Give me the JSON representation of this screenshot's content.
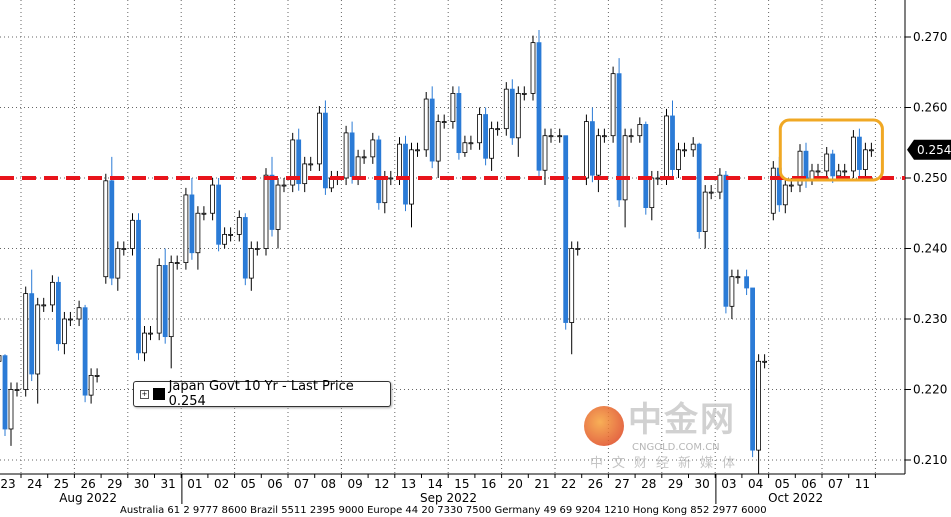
{
  "chart_data": {
    "type": "candlestick",
    "title": "",
    "xlabel": "",
    "ylabel": "",
    "ylim": [
      0.205,
      0.2755
    ],
    "y_ticks": [
      "0.210",
      "0.220",
      "0.230",
      "0.240",
      "0.250",
      "0.260",
      "0.270"
    ],
    "y_axis_side": "right",
    "grid": true,
    "x_tick_labels": [
      "23",
      "24",
      "25",
      "26",
      "29",
      "30",
      "31",
      "01",
      "02",
      "05",
      "06",
      "07",
      "08",
      "09",
      "12",
      "13",
      "14",
      "15",
      "16",
      "20",
      "21",
      "22",
      "26",
      "27",
      "28",
      "29",
      "30",
      "03",
      "04",
      "05",
      "06",
      "07",
      "11"
    ],
    "month_labels": [
      {
        "label": "Aug 2022",
        "from": 0,
        "to": 6
      },
      {
        "label": "Sep 2022",
        "from": 7,
        "to": 26
      },
      {
        "label": "Oct 2022",
        "from": 27,
        "to": 32
      }
    ],
    "series": [
      {
        "name": "Japan Govt 10 Yr - Last Price",
        "daily": [
          {
            "o": 0.224,
            "h": 0.225,
            "l": 0.212,
            "c": 0.22
          },
          {
            "o": 0.22,
            "h": 0.237,
            "l": 0.218,
            "c": 0.232
          },
          {
            "o": 0.232,
            "h": 0.236,
            "l": 0.225,
            "c": 0.23
          },
          {
            "o": 0.23,
            "h": 0.232,
            "l": 0.218,
            "c": 0.222
          },
          {
            "o": 0.236,
            "h": 0.253,
            "l": 0.234,
            "c": 0.24
          },
          {
            "o": 0.24,
            "h": 0.245,
            "l": 0.224,
            "c": 0.228
          },
          {
            "o": 0.228,
            "h": 0.24,
            "l": 0.223,
            "c": 0.238
          },
          {
            "o": 0.238,
            "h": 0.25,
            "l": 0.237,
            "c": 0.245
          },
          {
            "o": 0.245,
            "h": 0.25,
            "l": 0.24,
            "c": 0.242
          },
          {
            "o": 0.242,
            "h": 0.245,
            "l": 0.234,
            "c": 0.24
          },
          {
            "o": 0.24,
            "h": 0.253,
            "l": 0.24,
            "c": 0.249
          },
          {
            "o": 0.249,
            "h": 0.257,
            "l": 0.248,
            "c": 0.252
          },
          {
            "o": 0.252,
            "h": 0.261,
            "l": 0.248,
            "c": 0.25
          },
          {
            "o": 0.25,
            "h": 0.258,
            "l": 0.249,
            "c": 0.253
          },
          {
            "o": 0.253,
            "h": 0.256,
            "l": 0.245,
            "c": 0.25
          },
          {
            "o": 0.25,
            "h": 0.256,
            "l": 0.243,
            "c": 0.254
          },
          {
            "o": 0.254,
            "h": 0.263,
            "l": 0.25,
            "c": 0.258
          },
          {
            "o": 0.258,
            "h": 0.263,
            "l": 0.253,
            "c": 0.255
          },
          {
            "o": 0.255,
            "h": 0.26,
            "l": 0.251,
            "c": 0.257
          },
          {
            "o": 0.257,
            "h": 0.264,
            "l": 0.253,
            "c": 0.262
          },
          {
            "o": 0.262,
            "h": 0.271,
            "l": 0.249,
            "c": 0.256
          },
          {
            "o": 0.256,
            "h": 0.256,
            "l": 0.225,
            "c": 0.24
          },
          {
            "o": 0.25,
            "h": 0.26,
            "l": 0.248,
            "c": 0.256
          },
          {
            "o": 0.256,
            "h": 0.267,
            "l": 0.243,
            "c": 0.256
          },
          {
            "o": 0.256,
            "h": 0.258,
            "l": 0.244,
            "c": 0.25
          },
          {
            "o": 0.25,
            "h": 0.261,
            "l": 0.25,
            "c": 0.254
          },
          {
            "o": 0.254,
            "h": 0.255,
            "l": 0.24,
            "c": 0.248
          },
          {
            "o": 0.248,
            "h": 0.251,
            "l": 0.23,
            "c": 0.236
          },
          {
            "o": 0.236,
            "h": 0.234,
            "l": 0.206,
            "c": 0.224
          },
          {
            "o": 0.245,
            "h": 0.253,
            "l": 0.245,
            "c": 0.249
          },
          {
            "o": 0.249,
            "h": 0.255,
            "l": 0.249,
            "c": 0.251
          },
          {
            "o": 0.251,
            "h": 0.254,
            "l": 0.25,
            "c": 0.251
          },
          {
            "o": 0.251,
            "h": 0.257,
            "l": 0.25,
            "c": 0.254
          }
        ]
      }
    ],
    "last_price_label": "0.254",
    "reference_line": {
      "value": 0.25,
      "style": "dashed",
      "color": "#e8141b"
    },
    "highlight_box": {
      "from_index": 29,
      "to_index": 32,
      "color": "#f0a824"
    },
    "colors": {
      "down": "#2b7bd6",
      "up": "#ffffff",
      "outline": "#000000"
    }
  },
  "legend": {
    "label": "Japan Govt 10 Yr - Last Price 0.254"
  },
  "footer": "Australia 61 2 9777 8600 Brazil 5511 2395 9000 Europe 44 20 7330 7500 Germany 49 69 9204 1210 Hong Kong 852 2977 6000",
  "watermark": {
    "name": "中金网",
    "domain": "CNGOLD.COM.CN",
    "tagline": "中文财经新媒体"
  }
}
